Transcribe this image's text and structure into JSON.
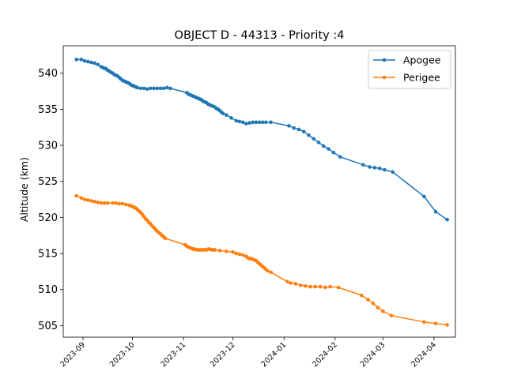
{
  "chart_data": {
    "type": "line",
    "title": "OBJECT D - 44313 - Priority :4",
    "xlabel": "",
    "ylabel": "Altitude (km)",
    "xlim": [
      "2023-08-20",
      "2024-04-14"
    ],
    "ylim": [
      503.4,
      543.8
    ],
    "x_ticks": [
      "2023-09",
      "2023-10",
      "2023-11",
      "2023-12",
      "2024-01",
      "2024-02",
      "2024-03",
      "2024-04"
    ],
    "y_ticks": [
      505,
      510,
      515,
      520,
      525,
      530,
      535,
      540
    ],
    "legend_position": "top-right",
    "grid": false,
    "series": [
      {
        "name": "Apogee",
        "color": "#1f77b4",
        "points": [
          [
            "2023-08-28",
            541.9
          ],
          [
            "2023-08-31",
            541.9
          ],
          [
            "2023-09-02",
            541.7
          ],
          [
            "2023-09-04",
            541.6
          ],
          [
            "2023-09-06",
            541.5
          ],
          [
            "2023-09-08",
            541.4
          ],
          [
            "2023-09-10",
            541.2
          ],
          [
            "2023-09-12",
            540.9
          ],
          [
            "2023-09-13",
            540.8
          ],
          [
            "2023-09-14",
            540.7
          ],
          [
            "2023-09-15",
            540.6
          ],
          [
            "2023-09-16",
            540.4
          ],
          [
            "2023-09-17",
            540.3
          ],
          [
            "2023-09-18",
            540.1
          ],
          [
            "2023-09-19",
            540.0
          ],
          [
            "2023-09-20",
            539.8
          ],
          [
            "2023-09-21",
            539.7
          ],
          [
            "2023-09-22",
            539.6
          ],
          [
            "2023-09-23",
            539.4
          ],
          [
            "2023-09-24",
            539.2
          ],
          [
            "2023-09-25",
            539.0
          ],
          [
            "2023-09-26",
            538.9
          ],
          [
            "2023-09-27",
            538.8
          ],
          [
            "2023-09-28",
            538.7
          ],
          [
            "2023-09-29",
            538.6
          ],
          [
            "2023-09-30",
            538.4
          ],
          [
            "2023-10-01",
            538.3
          ],
          [
            "2023-10-02",
            538.2
          ],
          [
            "2023-10-03",
            538.1
          ],
          [
            "2023-10-04",
            538.0
          ],
          [
            "2023-10-06",
            537.9
          ],
          [
            "2023-10-08",
            537.9
          ],
          [
            "2023-10-10",
            537.8
          ],
          [
            "2023-10-12",
            537.9
          ],
          [
            "2023-10-14",
            537.9
          ],
          [
            "2023-10-16",
            537.9
          ],
          [
            "2023-10-18",
            537.9
          ],
          [
            "2023-10-20",
            537.9
          ],
          [
            "2023-10-22",
            538.0
          ],
          [
            "2023-10-24",
            537.9
          ],
          [
            "2023-11-03",
            537.3
          ],
          [
            "2023-11-04",
            537.1
          ],
          [
            "2023-11-05",
            537.0
          ],
          [
            "2023-11-06",
            536.9
          ],
          [
            "2023-11-07",
            536.8
          ],
          [
            "2023-11-08",
            536.7
          ],
          [
            "2023-11-09",
            536.6
          ],
          [
            "2023-11-10",
            536.5
          ],
          [
            "2023-11-11",
            536.4
          ],
          [
            "2023-11-12",
            536.3
          ],
          [
            "2023-11-13",
            536.1
          ],
          [
            "2023-11-14",
            536.0
          ],
          [
            "2023-11-15",
            535.9
          ],
          [
            "2023-11-16",
            535.7
          ],
          [
            "2023-11-17",
            535.6
          ],
          [
            "2023-11-18",
            535.5
          ],
          [
            "2023-11-19",
            535.4
          ],
          [
            "2023-11-20",
            535.3
          ],
          [
            "2023-11-21",
            535.1
          ],
          [
            "2023-11-22",
            535.0
          ],
          [
            "2023-11-23",
            534.8
          ],
          [
            "2023-11-24",
            534.6
          ],
          [
            "2023-11-25",
            534.4
          ],
          [
            "2023-11-27",
            534.2
          ],
          [
            "2023-11-30",
            533.8
          ],
          [
            "2023-12-03",
            533.4
          ],
          [
            "2023-12-05",
            533.3
          ],
          [
            "2023-12-07",
            533.2
          ],
          [
            "2023-12-09",
            533.0
          ],
          [
            "2023-12-11",
            533.1
          ],
          [
            "2023-12-13",
            533.2
          ],
          [
            "2023-12-15",
            533.2
          ],
          [
            "2023-12-17",
            533.2
          ],
          [
            "2023-12-19",
            533.2
          ],
          [
            "2023-12-21",
            533.2
          ],
          [
            "2023-12-24",
            533.2
          ],
          [
            "2024-01-04",
            532.7
          ],
          [
            "2024-01-07",
            532.4
          ],
          [
            "2024-01-10",
            532.2
          ],
          [
            "2024-01-13",
            531.9
          ],
          [
            "2024-01-16",
            531.4
          ],
          [
            "2024-01-19",
            530.9
          ],
          [
            "2024-01-22",
            530.4
          ],
          [
            "2024-01-25",
            529.9
          ],
          [
            "2024-01-28",
            529.5
          ],
          [
            "2024-01-31",
            529.0
          ],
          [
            "2024-02-04",
            528.4
          ],
          [
            "2024-02-18",
            527.3
          ],
          [
            "2024-02-22",
            527.0
          ],
          [
            "2024-02-25",
            526.9
          ],
          [
            "2024-02-28",
            526.8
          ],
          [
            "2024-03-02",
            526.6
          ],
          [
            "2024-03-07",
            526.3
          ],
          [
            "2024-03-26",
            522.9
          ],
          [
            "2024-04-02",
            520.8
          ],
          [
            "2024-04-09",
            519.7
          ]
        ]
      },
      {
        "name": "Perigee",
        "color": "#ff7f0e",
        "points": [
          [
            "2023-08-28",
            523.0
          ],
          [
            "2023-08-31",
            522.7
          ],
          [
            "2023-09-02",
            522.5
          ],
          [
            "2023-09-04",
            522.4
          ],
          [
            "2023-09-06",
            522.3
          ],
          [
            "2023-09-08",
            522.2
          ],
          [
            "2023-09-10",
            522.1
          ],
          [
            "2023-09-12",
            522.0
          ],
          [
            "2023-09-14",
            522.0
          ],
          [
            "2023-09-16",
            522.0
          ],
          [
            "2023-09-19",
            522.0
          ],
          [
            "2023-09-21",
            522.0
          ],
          [
            "2023-09-23",
            521.9
          ],
          [
            "2023-09-25",
            521.9
          ],
          [
            "2023-09-27",
            521.8
          ],
          [
            "2023-09-29",
            521.7
          ],
          [
            "2023-09-30",
            521.6
          ],
          [
            "2023-10-01",
            521.5
          ],
          [
            "2023-10-02",
            521.4
          ],
          [
            "2023-10-03",
            521.3
          ],
          [
            "2023-10-04",
            521.1
          ],
          [
            "2023-10-05",
            520.9
          ],
          [
            "2023-10-06",
            520.7
          ],
          [
            "2023-10-07",
            520.4
          ],
          [
            "2023-10-08",
            520.1
          ],
          [
            "2023-10-09",
            519.8
          ],
          [
            "2023-10-10",
            519.6
          ],
          [
            "2023-10-11",
            519.3
          ],
          [
            "2023-10-12",
            519.1
          ],
          [
            "2023-10-13",
            518.8
          ],
          [
            "2023-10-14",
            518.6
          ],
          [
            "2023-10-15",
            518.3
          ],
          [
            "2023-10-16",
            518.1
          ],
          [
            "2023-10-17",
            517.9
          ],
          [
            "2023-10-18",
            517.7
          ],
          [
            "2023-10-19",
            517.5
          ],
          [
            "2023-10-20",
            517.3
          ],
          [
            "2023-10-21",
            517.1
          ],
          [
            "2023-11-02",
            516.2
          ],
          [
            "2023-11-03",
            516.0
          ],
          [
            "2023-11-04",
            515.9
          ],
          [
            "2023-11-05",
            515.8
          ],
          [
            "2023-11-06",
            515.7
          ],
          [
            "2023-11-07",
            515.6
          ],
          [
            "2023-11-08",
            515.6
          ],
          [
            "2023-11-09",
            515.5
          ],
          [
            "2023-11-10",
            515.5
          ],
          [
            "2023-11-11",
            515.5
          ],
          [
            "2023-11-12",
            515.5
          ],
          [
            "2023-11-13",
            515.5
          ],
          [
            "2023-11-14",
            515.5
          ],
          [
            "2023-11-15",
            515.5
          ],
          [
            "2023-11-16",
            515.6
          ],
          [
            "2023-11-17",
            515.6
          ],
          [
            "2023-11-18",
            515.5
          ],
          [
            "2023-11-19",
            515.5
          ],
          [
            "2023-11-20",
            515.5
          ],
          [
            "2023-11-23",
            515.4
          ],
          [
            "2023-11-27",
            515.3
          ],
          [
            "2023-12-01",
            515.2
          ],
          [
            "2023-12-03",
            515.0
          ],
          [
            "2023-12-05",
            514.9
          ],
          [
            "2023-12-07",
            514.8
          ],
          [
            "2023-12-09",
            514.6
          ],
          [
            "2023-12-10",
            514.4
          ],
          [
            "2023-12-11",
            514.3
          ],
          [
            "2023-12-12",
            514.3
          ],
          [
            "2023-12-13",
            514.2
          ],
          [
            "2023-12-14",
            514.1
          ],
          [
            "2023-12-15",
            514.0
          ],
          [
            "2023-12-16",
            513.8
          ],
          [
            "2023-12-17",
            513.6
          ],
          [
            "2023-12-18",
            513.4
          ],
          [
            "2023-12-19",
            513.2
          ],
          [
            "2023-12-20",
            513.0
          ],
          [
            "2023-12-21",
            512.8
          ],
          [
            "2023-12-22",
            512.6
          ],
          [
            "2023-12-24",
            512.4
          ],
          [
            "2024-01-03",
            511.1
          ],
          [
            "2024-01-05",
            510.9
          ],
          [
            "2024-01-08",
            510.8
          ],
          [
            "2024-01-11",
            510.6
          ],
          [
            "2024-01-14",
            510.5
          ],
          [
            "2024-01-17",
            510.4
          ],
          [
            "2024-01-20",
            510.4
          ],
          [
            "2024-01-23",
            510.4
          ],
          [
            "2024-01-26",
            510.3
          ],
          [
            "2024-01-29",
            510.4
          ],
          [
            "2024-02-03",
            510.3
          ],
          [
            "2024-02-17",
            509.2
          ],
          [
            "2024-02-21",
            508.6
          ],
          [
            "2024-02-24",
            508.1
          ],
          [
            "2024-02-27",
            507.5
          ],
          [
            "2024-03-01",
            507.0
          ],
          [
            "2024-03-06",
            506.4
          ],
          [
            "2024-03-26",
            505.5
          ],
          [
            "2024-04-02",
            505.3
          ],
          [
            "2024-04-09",
            505.1
          ]
        ]
      }
    ]
  }
}
